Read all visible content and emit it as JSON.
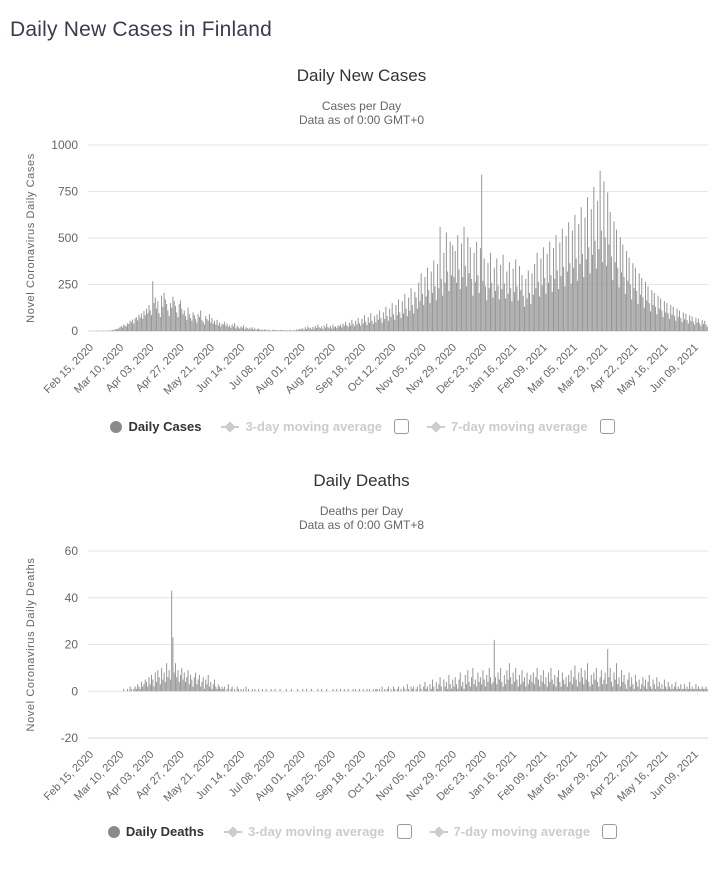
{
  "page": {
    "title": "Daily New Cases in Finland"
  },
  "colors": {
    "page_title": "#3b3b4f",
    "title_text": "#333333",
    "subtitle_text": "#666666",
    "tick_text": "#666666",
    "grid": "#e6e6e6",
    "axis_line": "#ccd6eb",
    "bar": "#969696",
    "legend_active": "#333333",
    "legend_disabled": "#cccccc",
    "legend_marker": "#8a8a8a"
  },
  "chart_data": [
    {
      "type": "bar",
      "title": "Daily New Cases",
      "subtitle_lines": [
        "Cases per Day",
        "Data as of 0:00 GMT+0"
      ],
      "ylabel": "Novel Coronavirus Daily Cases",
      "ylim": [
        0,
        1000
      ],
      "yticks": [
        0,
        250,
        500,
        750,
        1000
      ],
      "grid": true,
      "legend_position": "bottom",
      "x_start": "Feb 15, 2020",
      "x_tick_every_days": 24,
      "x_tick_labels": [
        "Feb 15, 2020",
        "Mar 10, 2020",
        "Apr 03, 2020",
        "Apr 27, 2020",
        "May 21, 2020",
        "Jun 14, 2020",
        "Jul 08, 2020",
        "Aug 01, 2020",
        "Aug 25, 2020",
        "Sep 18, 2020",
        "Oct 12, 2020",
        "Nov 05, 2020",
        "Nov 29, 2020",
        "Dec 23, 2020",
        "Jan 16, 2021",
        "Feb 09, 2021",
        "Mar 05, 2021",
        "Mar 29, 2021",
        "Apr 22, 2021",
        "May 16, 2021",
        "Jun 09, 2021"
      ],
      "series": [
        {
          "name": "Daily Cases",
          "type": "column",
          "visible": true,
          "values": [
            0,
            0,
            0,
            0,
            0,
            0,
            0,
            1,
            0,
            0,
            0,
            1,
            2,
            0,
            1,
            1,
            2,
            3,
            2,
            6,
            4,
            8,
            12,
            10,
            15,
            20,
            28,
            19,
            35,
            30,
            25,
            42,
            38,
            55,
            48,
            61,
            40,
            68,
            74,
            57,
            88,
            72,
            95,
            66,
            108,
            85,
            120,
            95,
            140,
            110,
            85,
            267,
            150,
            180,
            120,
            160,
            95,
            75,
            190,
            130,
            205,
            170,
            145,
            110,
            80,
            150,
            125,
            185,
            160,
            135,
            100,
            75,
            145,
            165,
            120,
            90,
            110,
            80,
            60,
            125,
            90,
            70,
            55,
            100,
            85,
            65,
            45,
            90,
            75,
            110,
            60,
            50,
            35,
            80,
            65,
            55,
            90,
            45,
            70,
            40,
            55,
            35,
            60,
            30,
            45,
            25,
            40,
            35,
            50,
            28,
            40,
            22,
            30,
            18,
            35,
            25,
            42,
            15,
            28,
            20,
            12,
            25,
            18,
            30,
            10,
            22,
            15,
            8,
            18,
            12,
            20,
            8,
            15,
            5,
            10,
            12,
            8,
            5,
            8,
            3,
            10,
            6,
            2,
            8,
            4,
            1,
            6,
            3,
            8,
            2,
            5,
            1,
            4,
            7,
            2,
            5,
            3,
            1,
            4,
            2,
            6,
            3,
            1,
            5,
            2,
            8,
            4,
            10,
            12,
            8,
            15,
            6,
            20,
            10,
            25,
            14,
            18,
            8,
            22,
            12,
            28,
            16,
            35,
            20,
            15,
            25,
            10,
            30,
            18,
            40,
            22,
            15,
            28,
            12,
            35,
            20,
            25,
            15,
            30,
            25,
            35,
            20,
            40,
            28,
            50,
            32,
            22,
            45,
            30,
            60,
            38,
            25,
            55,
            35,
            70,
            42,
            28,
            65,
            40,
            85,
            50,
            32,
            75,
            45,
            95,
            55,
            38,
            80,
            48,
            90,
            60,
            110,
            70,
            45,
            100,
            65,
            130,
            80,
            55,
            120,
            75,
            150,
            90,
            60,
            140,
            85,
            170,
            100,
            70,
            160,
            95,
            200,
            120,
            80,
            180,
            110,
            230,
            140,
            95,
            210,
            180,
            120,
            260,
            160,
            310,
            200,
            140,
            290,
            185,
            340,
            220,
            150,
            320,
            205,
            380,
            240,
            165,
            360,
            230,
            560,
            280,
            190,
            420,
            260,
            530,
            320,
            215,
            480,
            300,
            460,
            290,
            430,
            260,
            515,
            330,
            225,
            470,
            290,
            560,
            350,
            240,
            505,
            310,
            450,
            280,
            190,
            420,
            265,
            480,
            300,
            205,
            445,
            840,
            270,
            390,
            240,
            165,
            365,
            230,
            420,
            260,
            180,
            340,
            215,
            390,
            245,
            170,
            355,
            225,
            410,
            255,
            175,
            320,
            200,
            370,
            230,
            160,
            335,
            210,
            385,
            240,
            165,
            350,
            220,
            300,
            190,
            130,
            280,
            175,
            325,
            205,
            145,
            310,
            195,
            360,
            230,
            420,
            265,
            185,
            390,
            245,
            450,
            285,
            200,
            415,
            260,
            480,
            300,
            210,
            445,
            280,
            515,
            325,
            225,
            475,
            295,
            550,
            345,
            240,
            510,
            320,
            585,
            365,
            255,
            540,
            340,
            625,
            390,
            270,
            575,
            360,
            665,
            415,
            290,
            610,
            385,
            720,
            450,
            310,
            655,
            410,
            775,
            485,
            335,
            700,
            440,
            860,
            540,
            370,
            805,
            505,
            350,
            745,
            465,
            640,
            400,
            275,
            590,
            370,
            545,
            340,
            235,
            505,
            315,
            465,
            290,
            200,
            430,
            270,
            395,
            250,
            170,
            365,
            230,
            340,
            215,
            145,
            310,
            195,
            285,
            180,
            125,
            265,
            165,
            240,
            150,
            105,
            220,
            140,
            205,
            130,
            90,
            190,
            120,
            175,
            110,
            75,
            160,
            100,
            150,
            95,
            65,
            140,
            88,
            130,
            82,
            55,
            120,
            75,
            110,
            70,
            48,
            100,
            63,
            92,
            58,
            40,
            85,
            54,
            78,
            50,
            34,
            72,
            45,
            66,
            42,
            28,
            60,
            38,
            55,
            35,
            24
          ]
        },
        {
          "name": "3-day moving average",
          "type": "line",
          "visible": false
        },
        {
          "name": "7-day moving average",
          "type": "line",
          "visible": false
        }
      ],
      "legend": [
        {
          "label": "Daily Cases",
          "marker": "circle-icon",
          "enabled": true,
          "has_checkbox": false
        },
        {
          "label": "3-day moving average",
          "marker": "line-diamond-icon",
          "enabled": false,
          "has_checkbox": true,
          "checkbox_checked": false
        },
        {
          "label": "7-day moving average",
          "marker": "line-diamond-icon",
          "enabled": false,
          "has_checkbox": true,
          "checkbox_checked": false
        }
      ]
    },
    {
      "type": "bar",
      "title": "Daily Deaths",
      "subtitle_lines": [
        "Deaths per Day",
        "Data as of 0:00 GMT+8"
      ],
      "ylabel": "Novel Coronavirus Daily Deaths",
      "ylim": [
        -20,
        60
      ],
      "yticks": [
        -20,
        0,
        20,
        40,
        60
      ],
      "grid": true,
      "legend_position": "bottom",
      "x_start": "Feb 15, 2020",
      "x_tick_every_days": 24,
      "x_tick_labels": [
        "Feb 15, 2020",
        "Mar 10, 2020",
        "Apr 03, 2020",
        "Apr 27, 2020",
        "May 21, 2020",
        "Jun 14, 2020",
        "Jul 08, 2020",
        "Aug 01, 2020",
        "Aug 25, 2020",
        "Sep 18, 2020",
        "Oct 12, 2020",
        "Nov 05, 2020",
        "Nov 29, 2020",
        "Dec 23, 2020",
        "Jan 16, 2021",
        "Feb 09, 2021",
        "Mar 05, 2021",
        "Mar 29, 2021",
        "Apr 22, 2021",
        "May 16, 2021",
        "Jun 09, 2021"
      ],
      "series": [
        {
          "name": "Daily Deaths",
          "type": "column",
          "visible": true,
          "values": [
            0,
            0,
            0,
            0,
            0,
            0,
            0,
            0,
            0,
            0,
            0,
            0,
            0,
            0,
            0,
            0,
            0,
            0,
            0,
            0,
            0,
            0,
            0,
            0,
            0,
            0,
            0,
            0,
            1,
            0,
            0,
            1,
            0,
            2,
            1,
            0,
            1,
            2,
            1,
            3,
            2,
            1,
            4,
            2,
            3,
            5,
            4,
            2,
            6,
            3,
            7,
            5,
            2,
            8,
            4,
            9,
            6,
            3,
            10,
            5,
            8,
            4,
            12,
            6,
            9,
            5,
            43,
            23,
            8,
            12,
            6,
            9,
            4,
            7,
            10,
            5,
            8,
            4,
            6,
            9,
            3,
            7,
            5,
            2,
            6,
            8,
            3,
            5,
            7,
            2,
            4,
            6,
            1,
            5,
            3,
            7,
            2,
            4,
            1,
            3,
            5,
            2,
            1,
            3,
            2,
            1,
            2,
            1,
            2,
            0,
            1,
            3,
            0,
            1,
            2,
            0,
            1,
            0,
            2,
            1,
            0,
            1,
            0,
            1,
            0,
            2,
            0,
            1,
            0,
            0,
            1,
            0,
            1,
            0,
            0,
            1,
            0,
            0,
            1,
            0,
            0,
            1,
            0,
            0,
            0,
            1,
            0,
            0,
            1,
            0,
            0,
            0,
            1,
            0,
            0,
            0,
            0,
            1,
            0,
            0,
            0,
            1,
            0,
            0,
            0,
            0,
            1,
            0,
            0,
            0,
            1,
            0,
            0,
            1,
            0,
            0,
            0,
            1,
            0,
            0,
            0,
            0,
            1,
            0,
            0,
            1,
            0,
            0,
            0,
            1,
            0,
            0,
            0,
            0,
            1,
            0,
            0,
            1,
            0,
            0,
            1,
            0,
            0,
            1,
            0,
            0,
            1,
            0,
            0,
            0,
            1,
            0,
            1,
            0,
            0,
            1,
            0,
            0,
            1,
            0,
            0,
            1,
            0,
            1,
            0,
            0,
            1,
            0,
            1,
            1,
            0,
            1,
            0,
            2,
            0,
            1,
            0,
            1,
            2,
            0,
            1,
            0,
            2,
            1,
            0,
            1,
            2,
            0,
            1,
            0,
            2,
            1,
            0,
            3,
            1,
            0,
            2,
            1,
            2,
            0,
            1,
            2,
            0,
            3,
            1,
            0,
            2,
            4,
            1,
            2,
            0,
            3,
            1,
            5,
            2,
            0,
            4,
            1,
            3,
            6,
            2,
            0,
            5,
            2,
            4,
            1,
            7,
            3,
            1,
            5,
            2,
            6,
            3,
            1,
            5,
            8,
            2,
            4,
            1,
            7,
            3,
            9,
            4,
            2,
            6,
            10,
            3,
            5,
            2,
            8,
            4,
            6,
            3,
            9,
            5,
            2,
            7,
            4,
            10,
            6,
            3,
            4,
            22,
            6,
            3,
            8,
            5,
            10,
            4,
            2,
            7,
            3,
            9,
            5,
            12,
            6,
            3,
            8,
            4,
            10,
            5,
            2,
            7,
            3,
            9,
            4,
            6,
            2,
            8,
            3,
            5,
            7,
            4,
            8,
            3,
            6,
            10,
            5,
            2,
            7,
            4,
            9,
            3,
            6,
            2,
            8,
            4,
            10,
            5,
            3,
            7,
            2,
            6,
            9,
            4,
            2,
            8,
            5,
            3,
            6,
            2,
            7,
            4,
            9,
            3,
            6,
            11,
            5,
            2,
            8,
            4,
            10,
            6,
            3,
            9,
            5,
            12,
            4,
            2,
            7,
            3,
            8,
            5,
            10,
            4,
            2,
            6,
            9,
            3,
            5,
            8,
            3,
            18,
            6,
            10,
            4,
            2,
            8,
            5,
            12,
            3,
            6,
            2,
            9,
            4,
            7,
            3,
            1,
            5,
            8,
            2,
            6,
            3,
            1,
            7,
            4,
            2,
            5,
            1,
            3,
            6,
            2,
            5,
            1,
            4,
            7,
            2,
            1,
            5,
            3,
            1,
            6,
            2,
            4,
            1,
            3,
            1,
            5,
            2,
            1,
            4,
            2,
            1,
            3,
            1,
            2,
            4,
            1,
            2,
            1,
            3,
            1,
            1,
            3,
            1,
            2,
            1,
            4,
            1,
            2,
            1,
            1,
            3,
            1,
            2,
            1,
            1,
            2,
            1,
            1,
            2,
            1
          ]
        },
        {
          "name": "3-day moving average",
          "type": "line",
          "visible": false
        },
        {
          "name": "7-day moving average",
          "type": "line",
          "visible": false
        }
      ],
      "legend": [
        {
          "label": "Daily Deaths",
          "marker": "circle-icon",
          "enabled": true,
          "has_checkbox": false
        },
        {
          "label": "3-day moving average",
          "marker": "line-diamond-icon",
          "enabled": false,
          "has_checkbox": true,
          "checkbox_checked": false
        },
        {
          "label": "7-day moving average",
          "marker": "line-diamond-icon",
          "enabled": false,
          "has_checkbox": true,
          "checkbox_checked": false
        }
      ]
    }
  ]
}
